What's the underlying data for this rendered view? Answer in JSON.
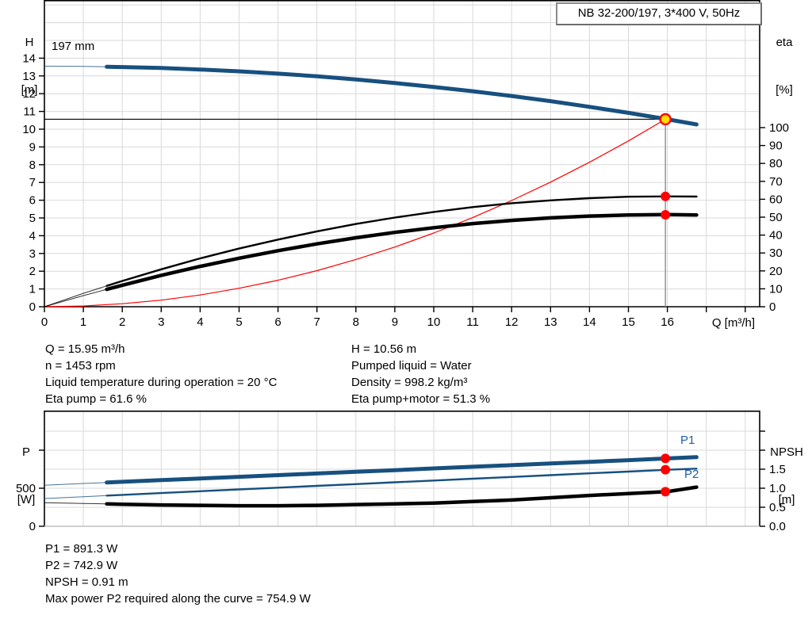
{
  "title_box": {
    "label": "NB 32-200/197, 3*400 V, 50Hz"
  },
  "info_block": {
    "left": [
      "Q = 15.95 m³/h",
      "n = 1453 rpm",
      "Liquid temperature during operation = 20 °C",
      "Eta pump = 61.6 %"
    ],
    "right": [
      "H = 10.56 m",
      "Pumped liquid = Water",
      "Density = 998.2 kg/m³",
      "Eta pump+motor = 51.3 %"
    ]
  },
  "result_block": [
    "P1 = 891.3 W",
    "P2 = 742.9 W",
    "NPSH = 0.91 m",
    "Max power P2 required along the curve = 754.9 W"
  ],
  "colors": {
    "curve_blue": "#17507f",
    "label_blue": "#1d5fa6",
    "curve_black": "#000000",
    "curve_red": "#ff0000",
    "marker_red": "#ff0000",
    "marker_yellow": "#ffdd00",
    "grid": "#d9d9d9",
    "guide_gray": "#8c8c8c",
    "frame": "#000000",
    "frame_gray": "#b3b3b3"
  },
  "chart_data": [
    {
      "id": "qh",
      "type": "line",
      "title": "NB 32-200/197, 3*400 V, 50Hz",
      "x": {
        "name": "Q",
        "label": "Q [m³/h]",
        "min": 0,
        "max": 18.35,
        "ticks": [
          {
            "v": 0,
            "t": "0"
          },
          {
            "v": 1,
            "t": "1"
          },
          {
            "v": 2,
            "t": "2"
          },
          {
            "v": 3,
            "t": "3"
          },
          {
            "v": 4,
            "t": "4"
          },
          {
            "v": 5,
            "t": "5"
          },
          {
            "v": 6,
            "t": "6"
          },
          {
            "v": 7,
            "t": "7"
          },
          {
            "v": 8,
            "t": "8"
          },
          {
            "v": 9,
            "t": "9"
          },
          {
            "v": 10,
            "t": "10"
          },
          {
            "v": 11,
            "t": "11"
          },
          {
            "v": 12,
            "t": "12"
          },
          {
            "v": 13,
            "t": "13"
          },
          {
            "v": 14,
            "t": "14"
          },
          {
            "v": 15,
            "t": "15"
          },
          {
            "v": 16,
            "t": "16"
          },
          {
            "v": 17
          },
          {
            "v": 18
          }
        ]
      },
      "y_left": {
        "name": "H",
        "unit": "[m]",
        "min": 0,
        "max": 17.3,
        "ticks": [
          {
            "v": 0,
            "t": "0"
          },
          {
            "v": 1,
            "t": "1"
          },
          {
            "v": 2,
            "t": "2"
          },
          {
            "v": 3,
            "t": "3"
          },
          {
            "v": 4,
            "t": "4"
          },
          {
            "v": 5,
            "t": "5"
          },
          {
            "v": 6,
            "t": "6"
          },
          {
            "v": 7,
            "t": "7"
          },
          {
            "v": 8,
            "t": "8"
          },
          {
            "v": 9,
            "t": "9"
          },
          {
            "v": 10,
            "t": "10"
          },
          {
            "v": 11,
            "t": "11"
          },
          {
            "v": 12,
            "t": "12"
          },
          {
            "v": 13,
            "t": "13"
          },
          {
            "v": 14,
            "t": "14"
          }
        ]
      },
      "y_right": {
        "name": "eta",
        "unit": "[%]",
        "min": 0,
        "max": 100,
        "ticks": [
          {
            "v": 0,
            "t": "0"
          },
          {
            "v": 10,
            "t": "10"
          },
          {
            "v": 20,
            "t": "20"
          },
          {
            "v": 30,
            "t": "30"
          },
          {
            "v": 40,
            "t": "40"
          },
          {
            "v": 50,
            "t": "50"
          },
          {
            "v": 60,
            "t": "60"
          },
          {
            "v": 70,
            "t": "70"
          },
          {
            "v": 80,
            "t": "80"
          },
          {
            "v": 90,
            "t": "90"
          },
          {
            "v": 100,
            "t": "100"
          }
        ]
      },
      "series": [
        {
          "name": "system-curve",
          "axis": "left",
          "color": "#ff0000",
          "width": 1.2,
          "x": [
            0,
            1,
            2,
            3,
            4,
            5,
            6,
            7,
            8,
            9,
            10,
            11,
            12,
            13,
            14,
            15,
            15.95
          ],
          "y": [
            0,
            0.04,
            0.17,
            0.37,
            0.66,
            1.04,
            1.49,
            2.03,
            2.66,
            3.36,
            4.15,
            5.02,
            5.98,
            7.02,
            8.14,
            9.34,
            10.56
          ]
        },
        {
          "name": "eta-pump-curve",
          "axis": "right",
          "color": "#000000",
          "width": 2.4,
          "thin_until": 1.6,
          "x": [
            0,
            1,
            2,
            3,
            4,
            5,
            6,
            7,
            8,
            9,
            10,
            11,
            12,
            13,
            14,
            15,
            16,
            16.75
          ],
          "y": [
            0,
            7.5,
            14.4,
            20.9,
            27.0,
            32.5,
            37.5,
            42.1,
            46.2,
            49.8,
            52.9,
            55.6,
            57.8,
            59.4,
            60.6,
            61.4,
            61.6,
            61.5
          ]
        },
        {
          "name": "eta-pump-motor-curve",
          "axis": "right",
          "color": "#000000",
          "width": 4.5,
          "thin_until": 1.6,
          "x": [
            0,
            1,
            2,
            3,
            4,
            5,
            6,
            7,
            8,
            9,
            10,
            11,
            12,
            13,
            14,
            15,
            16,
            16.75
          ],
          "y": [
            0,
            6.2,
            12.0,
            17.5,
            22.5,
            27.1,
            31.3,
            35.1,
            38.5,
            41.5,
            44.1,
            46.4,
            48.2,
            49.6,
            50.6,
            51.2,
            51.4,
            51.2
          ]
        },
        {
          "name": "head-curve",
          "label": "197 mm",
          "axis": "left",
          "color": "#17507f",
          "width": 5,
          "thin_until": 1.6,
          "x": [
            0,
            1,
            2,
            3,
            4,
            5,
            6,
            7,
            8,
            9,
            10,
            11,
            12,
            13,
            14,
            15,
            16,
            16.75
          ],
          "y": [
            13.55,
            13.54,
            13.5,
            13.45,
            13.36,
            13.26,
            13.13,
            12.98,
            12.8,
            12.6,
            12.38,
            12.14,
            11.87,
            11.58,
            11.26,
            10.92,
            10.56,
            10.27
          ]
        }
      ],
      "guides": [
        {
          "name": "duty-head-line",
          "type": "h",
          "axis": "left",
          "value": 10.56,
          "x_from": 0,
          "x_to": 15.95,
          "color": "#000000",
          "width": 1.2
        },
        {
          "name": "duty-flow-line",
          "type": "v",
          "x": 15.95,
          "axis": "left",
          "value_from": 10.56,
          "value_to": 0,
          "color": "#8c8c8c",
          "width": 1.4
        }
      ],
      "markers": [
        {
          "name": "duty-point",
          "x": 15.95,
          "axis": "left",
          "value": 10.56,
          "fill": "#ffdd00",
          "stroke": "#ff0000",
          "stroke_width": 2.4,
          "r": 6.5
        },
        {
          "name": "eta-pump-point",
          "x": 15.95,
          "axis": "right",
          "value": 61.6,
          "fill": "#ff0000",
          "r": 6
        },
        {
          "name": "eta-pump-motor-point",
          "x": 15.95,
          "axis": "right",
          "value": 51.3,
          "fill": "#ff0000",
          "r": 6
        }
      ]
    },
    {
      "id": "power-npsh",
      "type": "line",
      "x": {
        "name": "Q",
        "min": 0,
        "max": 18.35,
        "ticks": []
      },
      "y_left": {
        "name": "P",
        "unit": "[W]",
        "min": 0,
        "max": 1520,
        "ticks": [
          {
            "v": 0,
            "t": "0"
          },
          {
            "v": 500,
            "t": "500"
          },
          {
            "v": 1000
          }
        ]
      },
      "y_right": {
        "name": "NPSH",
        "unit": "[m]",
        "min": 0,
        "max": 3,
        "ticks": [
          {
            "v": 0,
            "t": "0.0"
          },
          {
            "v": 0.5,
            "t": "0.5"
          },
          {
            "v": 1,
            "t": "1.0"
          },
          {
            "v": 1.5,
            "t": "1.5"
          },
          {
            "v": 2
          },
          {
            "v": 2.5
          }
        ]
      },
      "series": [
        {
          "name": "p1-curve",
          "label": "P1",
          "axis": "left",
          "color": "#17507f",
          "width": 5,
          "thin_until": 1.6,
          "x": [
            0,
            1,
            2,
            3,
            4,
            5,
            6,
            7,
            8,
            9,
            10,
            11,
            12,
            13,
            14,
            15,
            16,
            16.75
          ],
          "y": [
            540,
            562,
            584,
            606,
            628,
            650,
            672,
            694,
            716,
            738,
            760,
            782,
            803,
            825,
            847,
            869,
            891.3,
            908
          ]
        },
        {
          "name": "p2-curve",
          "label": "P2",
          "axis": "left",
          "color": "#17507f",
          "width": 2.4,
          "thin_until": 1.6,
          "x": [
            0,
            1,
            2,
            3,
            4,
            5,
            6,
            7,
            8,
            9,
            10,
            11,
            12,
            13,
            14,
            15,
            16,
            16.75
          ],
          "y": [
            365,
            389,
            413,
            436,
            460,
            484,
            507,
            531,
            554,
            578,
            601,
            625,
            648,
            672,
            696,
            719,
            742.9,
            757
          ]
        },
        {
          "name": "npsh-curve",
          "axis": "right",
          "color": "#000000",
          "width": 4.5,
          "thin_until": 1.6,
          "x": [
            0,
            1,
            2,
            3,
            4,
            5,
            6,
            7,
            8,
            9,
            10,
            11,
            12,
            13,
            14,
            15,
            16,
            16.75
          ],
          "y": [
            0.62,
            0.6,
            0.58,
            0.56,
            0.55,
            0.54,
            0.54,
            0.55,
            0.57,
            0.59,
            0.61,
            0.65,
            0.69,
            0.75,
            0.81,
            0.86,
            0.91,
            1.03
          ]
        }
      ],
      "guides": [],
      "markers": [
        {
          "name": "duty-p1-point",
          "x": 15.95,
          "axis": "left",
          "value": 891.3,
          "fill": "#ff0000",
          "r": 6
        },
        {
          "name": "duty-p2-point",
          "x": 15.95,
          "axis": "left",
          "value": 742.9,
          "fill": "#ff0000",
          "r": 6
        },
        {
          "name": "duty-npsh-point",
          "x": 15.95,
          "axis": "right",
          "value": 0.91,
          "fill": "#ff0000",
          "r": 6
        }
      ]
    }
  ]
}
